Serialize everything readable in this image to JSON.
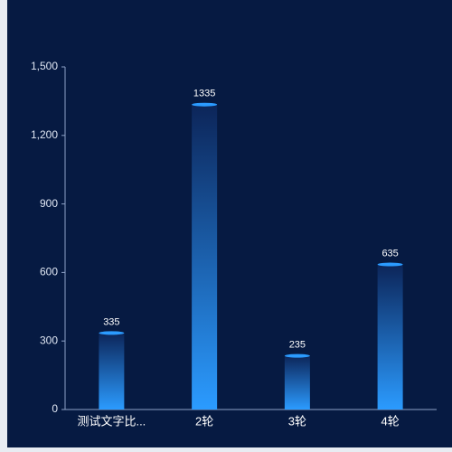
{
  "chart_data": {
    "type": "bar",
    "categories": [
      "测试文字比...",
      "2轮",
      "3轮",
      "4轮"
    ],
    "values": [
      335,
      1335,
      235,
      635
    ],
    "color": "#2b9bff",
    "ylim": [
      0,
      1500
    ],
    "yticks": [
      0,
      300,
      600,
      900,
      {
        "value": 1200,
        "label": "1,200"
      },
      {
        "value": 1500,
        "label": "1,500"
      }
    ],
    "grid": false
  }
}
